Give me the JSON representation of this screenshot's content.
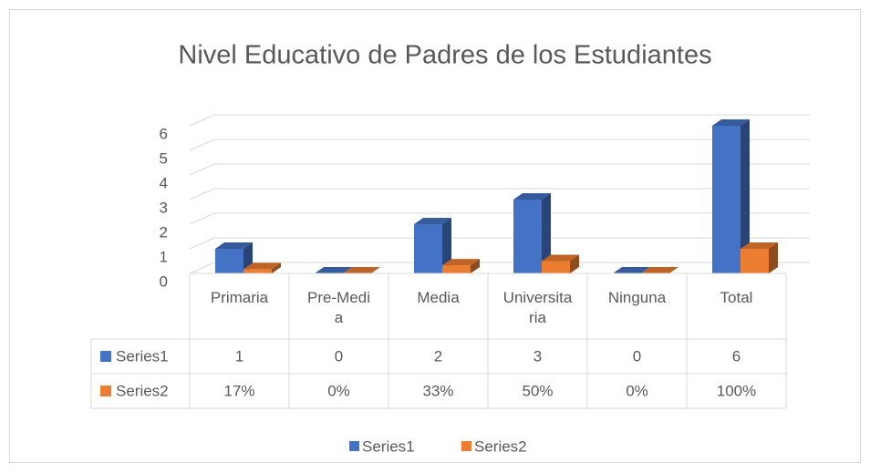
{
  "chart_data": {
    "type": "bar3d",
    "title": "Nivel Educativo de Padres  de los Estudiantes",
    "categories": [
      "Primaria",
      "Pre-Media",
      "Media",
      "Universitaria",
      "Ninguna",
      "Total"
    ],
    "series": [
      {
        "name": "Series1",
        "color": "#4472c4",
        "values": [
          1,
          0,
          2,
          3,
          0,
          6
        ]
      },
      {
        "name": "Series2",
        "color": "#ed7d31",
        "values": [
          0.17,
          0,
          0.33,
          0.5,
          0,
          1
        ],
        "value_labels": [
          "17%",
          "0%",
          "33%",
          "50%",
          "0%",
          "100%"
        ]
      }
    ],
    "ylim": [
      0,
      6
    ],
    "yticks": [
      0,
      1,
      2,
      3,
      4,
      5,
      6
    ],
    "grid": true,
    "legend": "bottom"
  }
}
